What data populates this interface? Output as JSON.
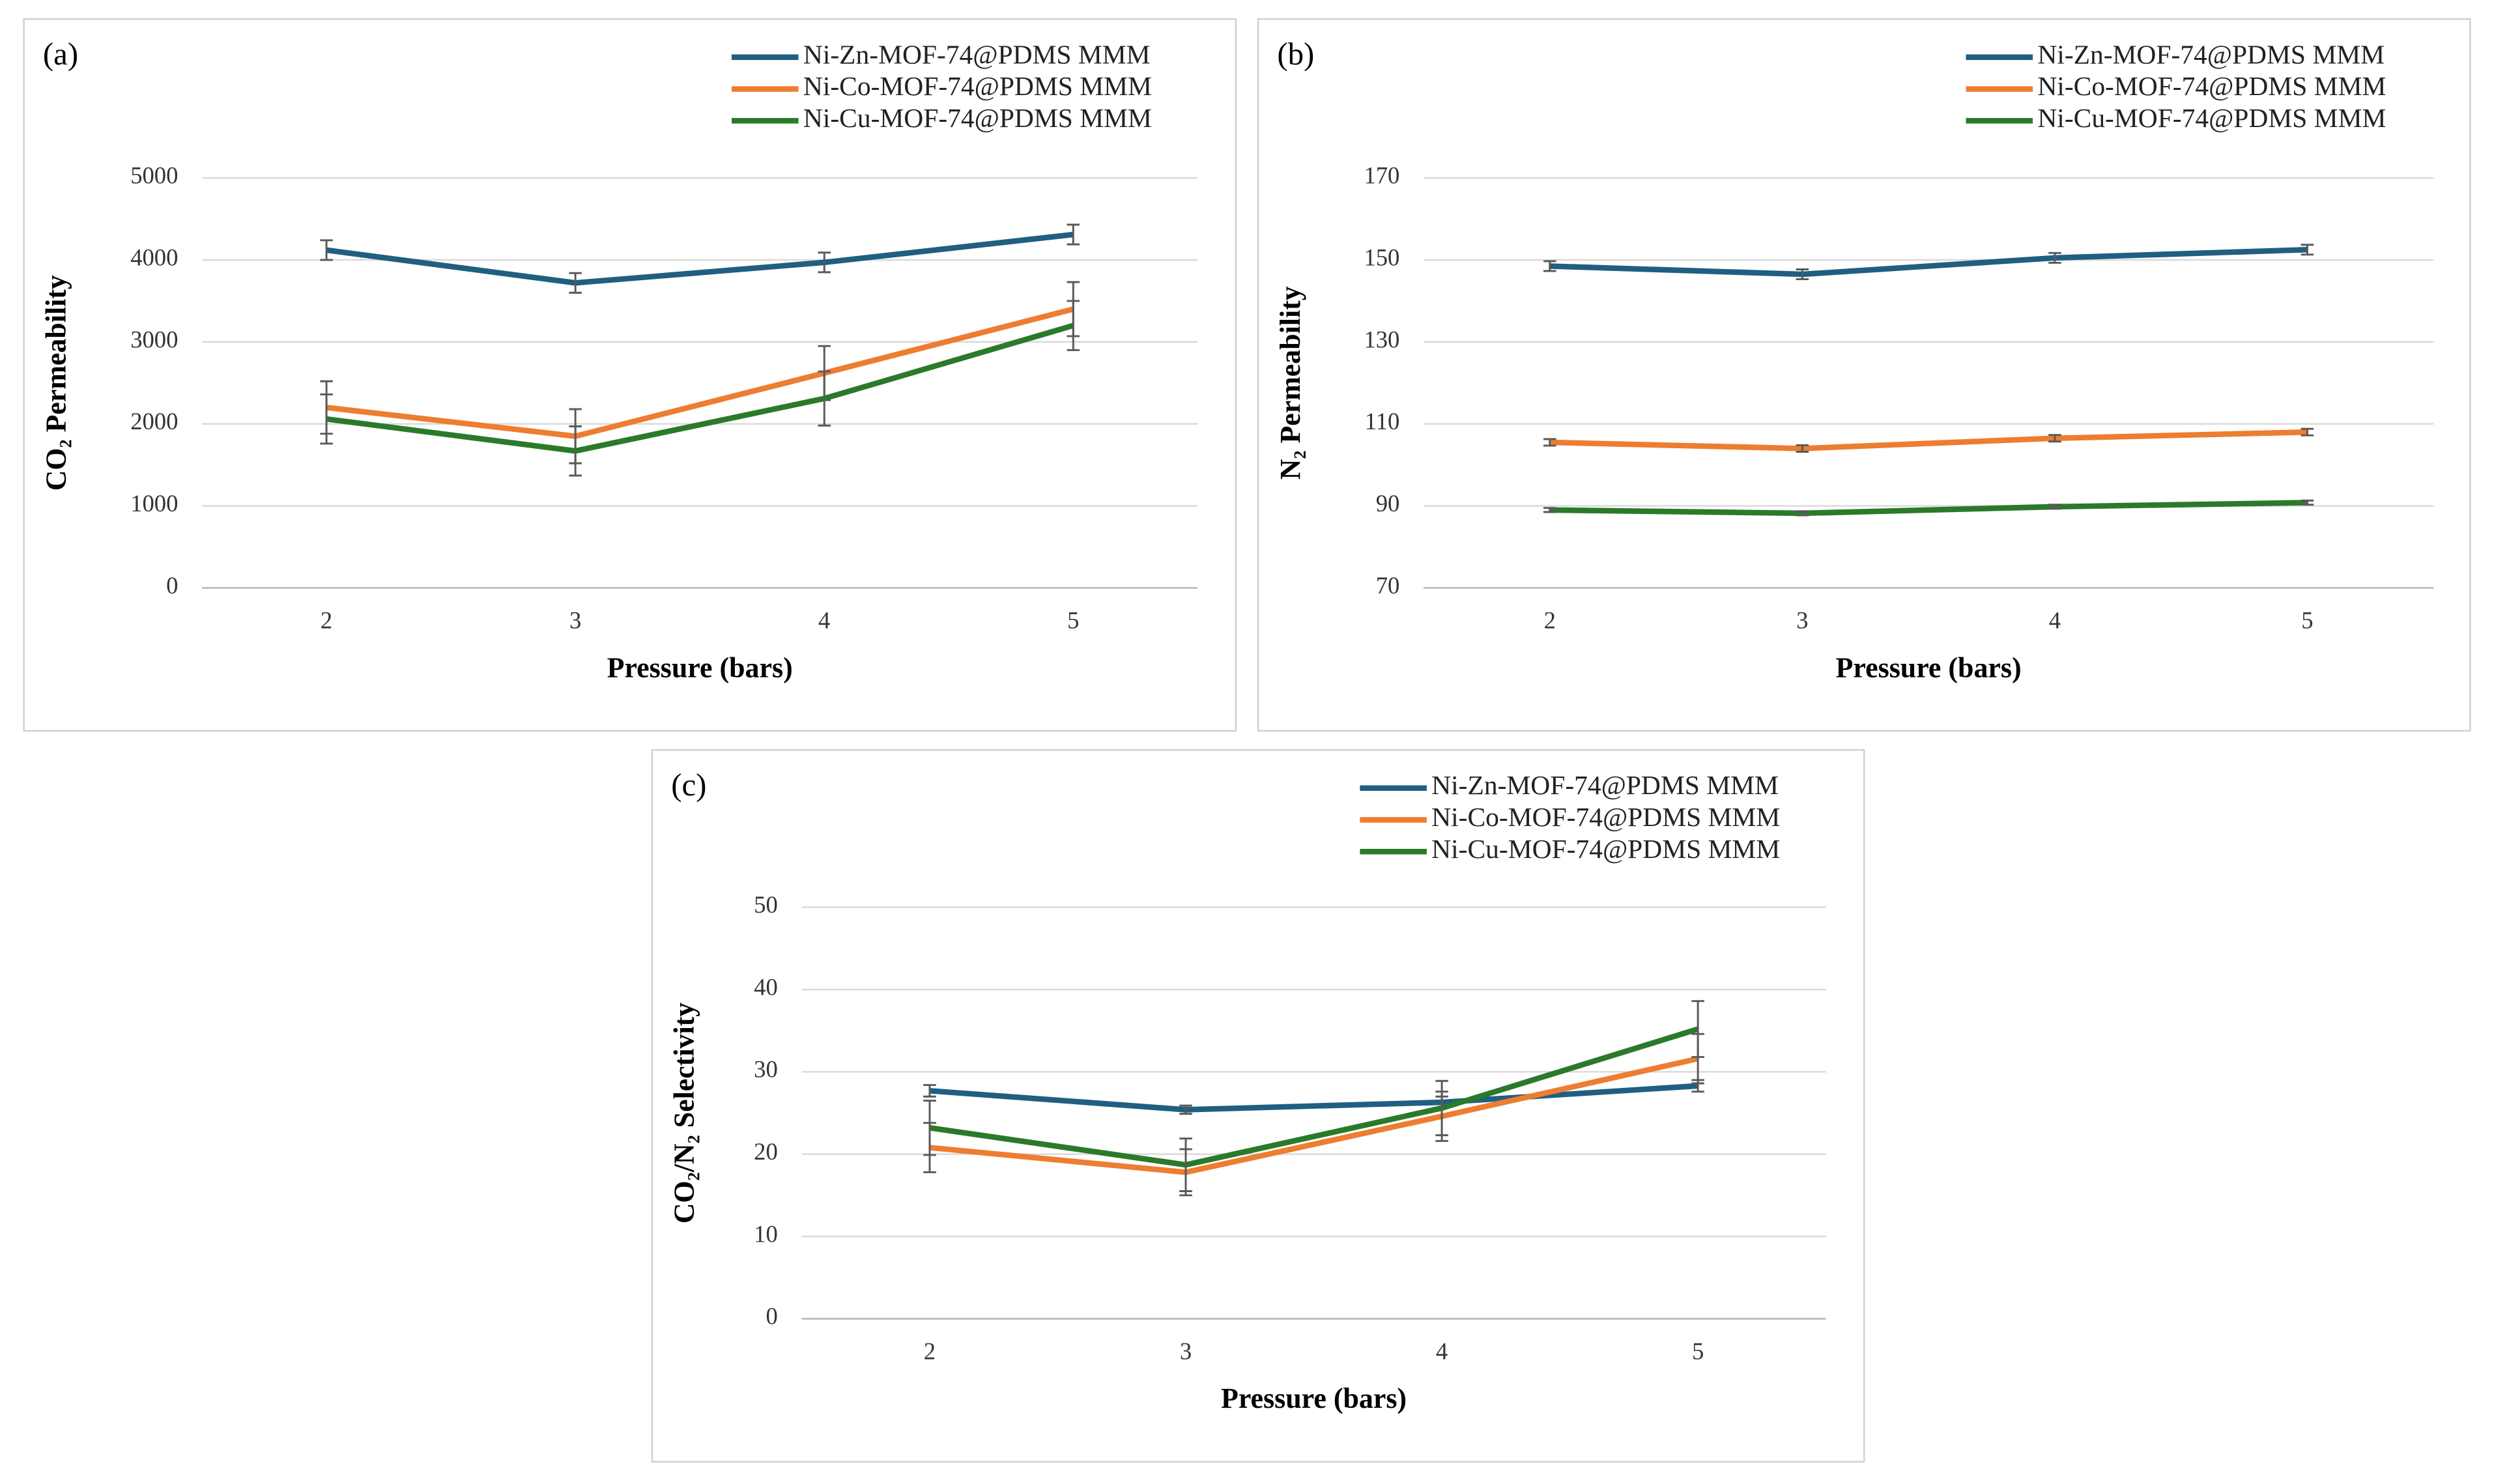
{
  "chart_data": [
    {
      "type": "line",
      "panel_label": "(a)",
      "x_label": "Pressure (bars)",
      "y_label": "CO₂ Permeability",
      "categories": [
        "2",
        "3",
        "4",
        "5"
      ],
      "ylim": [
        0,
        5000
      ],
      "yticks": [
        0,
        1000,
        2000,
        3000,
        4000,
        5000
      ],
      "grid": true,
      "legend": "top-right",
      "series": [
        {
          "name": "Ni-Zn-MOF-74@PDMS MMM",
          "color": "#1f5f82",
          "values": [
            4120,
            3720,
            3970,
            4310
          ],
          "errors": [
            120,
            120,
            120,
            120
          ]
        },
        {
          "name": "Ni-Co-MOF-74@PDMS MMM",
          "color": "#ed7d31",
          "values": [
            2200,
            1850,
            2620,
            3400
          ],
          "errors": [
            320,
            330,
            330,
            330
          ]
        },
        {
          "name": "Ni-Cu-MOF-74@PDMS MMM",
          "color": "#2a7a2a",
          "values": [
            2060,
            1670,
            2310,
            3200
          ],
          "errors": [
            300,
            300,
            330,
            300
          ]
        }
      ]
    },
    {
      "type": "line",
      "panel_label": "(b)",
      "x_label": "Pressure (bars)",
      "y_label": "N₂ Permeability",
      "categories": [
        "2",
        "3",
        "4",
        "5"
      ],
      "ylim": [
        70,
        170
      ],
      "yticks": [
        70,
        90,
        110,
        130,
        150,
        170
      ],
      "grid": true,
      "legend": "top-right",
      "series": [
        {
          "name": "Ni-Zn-MOF-74@PDMS MMM",
          "color": "#1f5f82",
          "values": [
            148.5,
            146.5,
            150.5,
            152.5
          ],
          "errors": [
            1.2,
            1.2,
            1.2,
            1.2
          ]
        },
        {
          "name": "Ni-Co-MOF-74@PDMS MMM",
          "color": "#ed7d31",
          "values": [
            105.5,
            104,
            106.5,
            108
          ],
          "errors": [
            0.8,
            0.8,
            0.8,
            0.8
          ]
        },
        {
          "name": "Ni-Cu-MOF-74@PDMS MMM",
          "color": "#2a7a2a",
          "values": [
            89,
            88.2,
            89.8,
            90.8
          ],
          "errors": [
            0.5,
            0.5,
            0.5,
            0.5
          ]
        }
      ]
    },
    {
      "type": "line",
      "panel_label": "(c)",
      "x_label": "Pressure (bars)",
      "y_label": "CO₂/N₂ Selectivity",
      "categories": [
        "2",
        "3",
        "4",
        "5"
      ],
      "ylim": [
        0,
        50
      ],
      "yticks": [
        0,
        10,
        20,
        30,
        40,
        50
      ],
      "grid": true,
      "legend": "top-right",
      "series": [
        {
          "name": "Ni-Zn-MOF-74@PDMS MMM",
          "color": "#1f5f82",
          "values": [
            27.7,
            25.4,
            26.3,
            28.3
          ],
          "errors": [
            0.7,
            0.5,
            0.7,
            0.7
          ]
        },
        {
          "name": "Ni-Co-MOF-74@PDMS MMM",
          "color": "#ed7d31",
          "values": [
            20.8,
            17.8,
            24.6,
            31.6
          ],
          "errors": [
            3,
            2.8,
            3,
            3
          ]
        },
        {
          "name": "Ni-Cu-MOF-74@PDMS MMM",
          "color": "#2a7a2a",
          "values": [
            23.2,
            18.7,
            25.6,
            35.2
          ],
          "errors": [
            3.3,
            3.2,
            3.3,
            3.4
          ]
        }
      ]
    }
  ]
}
